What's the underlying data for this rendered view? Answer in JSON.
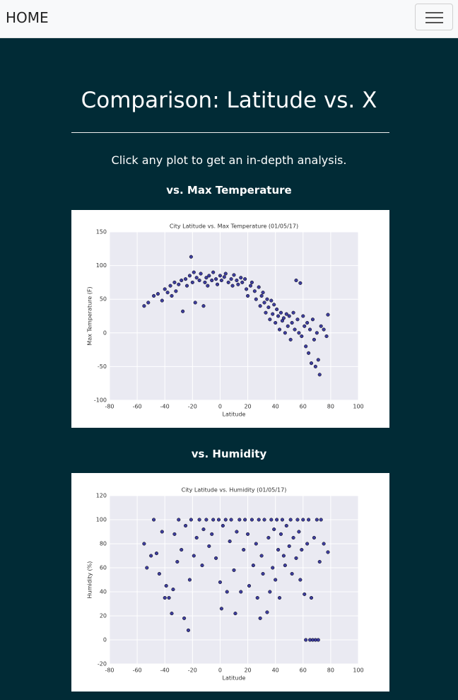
{
  "nav": {
    "brand": "HOME"
  },
  "header": {
    "title": "Comparison: Latitude vs. X",
    "instruction": "Click any plot to get an in-depth analysis."
  },
  "sections": [
    "vs. Max Temperature",
    "vs. Humidity"
  ],
  "chart_data": [
    {
      "type": "scatter",
      "title": "City Latitude vs. Max Temperature (01/05/17)",
      "x_label": "Latitude",
      "y_label": "Max Temperature (F)",
      "color": "#1f1f8f",
      "grid": true,
      "xlim": [
        -80,
        100
      ],
      "xticks": [
        -80,
        -60,
        -40,
        -20,
        0,
        20,
        40,
        60,
        80,
        100
      ],
      "ylim": [
        -100,
        150
      ],
      "yticks": [
        -100,
        -50,
        0,
        50,
        100,
        150
      ],
      "x": [
        -55,
        -52,
        -48,
        -45,
        -42,
        -40,
        -38,
        -36,
        -35,
        -33,
        -32,
        -30,
        -28,
        -27,
        -25,
        -24,
        -22,
        -21,
        -20,
        -19,
        -18,
        -17,
        -15,
        -14,
        -12,
        -11,
        -10,
        -9,
        -8,
        -6,
        -5,
        -3,
        -2,
        0,
        1,
        3,
        4,
        6,
        8,
        9,
        10,
        12,
        13,
        15,
        16,
        18,
        19,
        20,
        22,
        23,
        25,
        26,
        28,
        29,
        30,
        31,
        32,
        33,
        34,
        35,
        36,
        37,
        38,
        39,
        40,
        41,
        42,
        43,
        44,
        45,
        46,
        47,
        48,
        49,
        50,
        51,
        52,
        53,
        54,
        55,
        56,
        57,
        58,
        59,
        60,
        61,
        62,
        63,
        64,
        65,
        66,
        67,
        68,
        69,
        70,
        71,
        72,
        73,
        75,
        78,
        77
      ],
      "values": [
        40,
        45,
        55,
        58,
        48,
        65,
        60,
        70,
        55,
        75,
        62,
        72,
        78,
        32,
        80,
        70,
        85,
        113,
        75,
        90,
        45,
        82,
        78,
        88,
        40,
        75,
        82,
        70,
        85,
        78,
        90,
        80,
        72,
        85,
        78,
        83,
        88,
        75,
        80,
        70,
        86,
        78,
        72,
        82,
        75,
        80,
        65,
        55,
        70,
        75,
        62,
        50,
        68,
        40,
        55,
        60,
        45,
        30,
        50,
        38,
        20,
        48,
        28,
        42,
        15,
        35,
        25,
        5,
        30,
        18,
        22,
        0,
        28,
        10,
        25,
        -10,
        15,
        30,
        5,
        78,
        20,
        0,
        74,
        -5,
        25,
        10,
        -20,
        15,
        -30,
        5,
        -45,
        20,
        -10,
        -50,
        0,
        -40,
        -62,
        10,
        5,
        27,
        -5
      ]
    },
    {
      "type": "scatter",
      "title": "City Latitude vs. Humidity (01/05/17)",
      "x_label": "Latitude",
      "y_label": "Humidity (%)",
      "color": "#1f1f8f",
      "grid": true,
      "xlim": [
        -80,
        100
      ],
      "xticks": [
        -80,
        -60,
        -40,
        -20,
        0,
        20,
        40,
        60,
        80,
        100
      ],
      "ylim": [
        -20,
        120
      ],
      "yticks": [
        -20,
        0,
        20,
        40,
        60,
        80,
        100,
        120
      ],
      "x": [
        -55,
        -53,
        -50,
        -48,
        -46,
        -44,
        -42,
        -40,
        -39,
        -37,
        -35,
        -34,
        -33,
        -31,
        -30,
        -28,
        -26,
        -25,
        -23,
        -22,
        -21,
        -19,
        -17,
        -15,
        -13,
        -12,
        -10,
        -8,
        -6,
        -5,
        -3,
        -1,
        0,
        1,
        2,
        4,
        5,
        7,
        8,
        10,
        11,
        12,
        14,
        15,
        17,
        18,
        20,
        21,
        23,
        24,
        26,
        27,
        28,
        29,
        30,
        31,
        32,
        34,
        35,
        36,
        37,
        38,
        39,
        40,
        41,
        42,
        43,
        44,
        45,
        46,
        47,
        48,
        50,
        51,
        52,
        53,
        55,
        56,
        57,
        58,
        59,
        60,
        61,
        62,
        63,
        64,
        65,
        66,
        67,
        68,
        69,
        70,
        71,
        72,
        73,
        75,
        78
      ],
      "values": [
        80,
        60,
        70,
        100,
        72,
        55,
        90,
        35,
        45,
        35,
        22,
        42,
        88,
        65,
        100,
        75,
        18,
        95,
        8,
        50,
        100,
        70,
        85,
        100,
        62,
        92,
        100,
        78,
        88,
        100,
        68,
        100,
        48,
        26,
        95,
        100,
        40,
        82,
        100,
        58,
        22,
        90,
        100,
        40,
        75,
        100,
        88,
        45,
        100,
        62,
        80,
        35,
        100,
        18,
        70,
        55,
        100,
        23,
        85,
        40,
        100,
        60,
        92,
        50,
        100,
        75,
        35,
        88,
        100,
        70,
        62,
        95,
        78,
        100,
        55,
        85,
        68,
        100,
        90,
        50,
        75,
        100,
        38,
        0,
        80,
        100,
        0,
        35,
        0,
        85,
        0,
        100,
        0,
        65,
        100,
        80,
        73
      ]
    }
  ]
}
